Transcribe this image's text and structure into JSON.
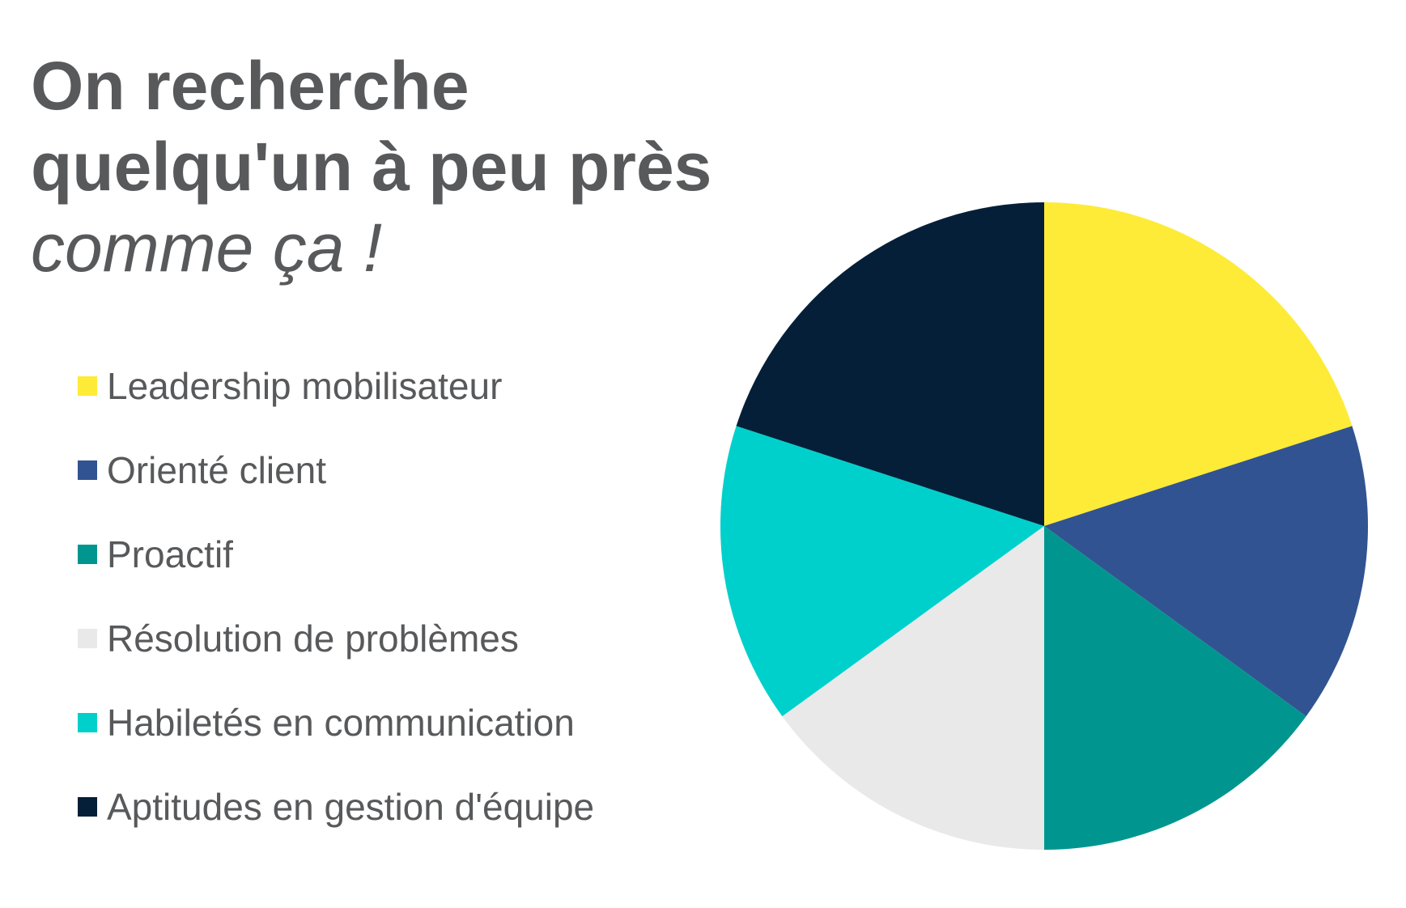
{
  "header": {
    "title_line1": "On recherche",
    "title_line2": "quelqu'un à peu près",
    "title_line3": "comme ça !"
  },
  "chart_data": {
    "type": "pie",
    "start_angle_deg": 0,
    "direction": "clockwise",
    "legend_position": "left",
    "series": [
      {
        "name": "Leadership mobilisateur",
        "value": 20,
        "color": "#FDEB38"
      },
      {
        "name": "Orienté client",
        "value": 15,
        "color": "#325391"
      },
      {
        "name": "Proactif",
        "value": 15,
        "color": "#00968F"
      },
      {
        "name": "Résolution de problèmes",
        "value": 15,
        "color": "#E9E9E9"
      },
      {
        "name": "Habiletés en communication",
        "value": 15,
        "color": "#00D0CB"
      },
      {
        "name": "Aptitudes en gestion d'équipe",
        "value": 20,
        "color": "#061F38"
      }
    ]
  }
}
